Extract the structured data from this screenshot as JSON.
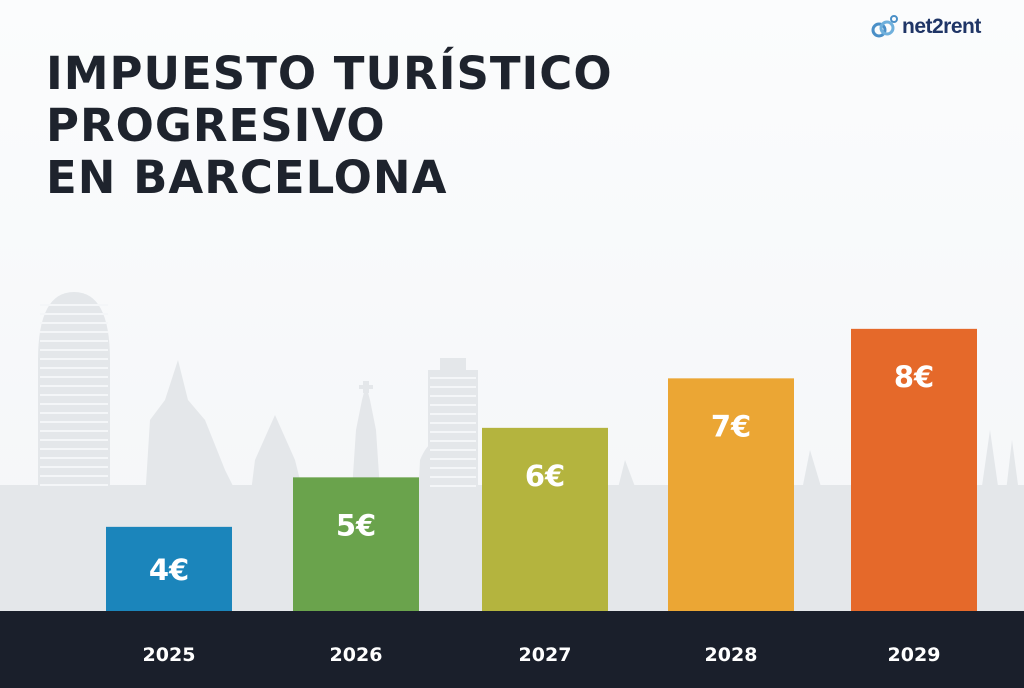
{
  "logo": {
    "text": "net2rent"
  },
  "chart_data": {
    "type": "bar",
    "title": [
      "IMPUESTO TURÍSTICO",
      "PROGRESIVO",
      "EN BARCELONA"
    ],
    "categories": [
      "2025",
      "2026",
      "2027",
      "2028",
      "2029"
    ],
    "values": [
      4,
      5,
      6,
      7,
      8
    ],
    "data_labels": [
      "4€",
      "5€",
      "6€",
      "7€",
      "8€"
    ],
    "colors": [
      "#1b85bb",
      "#6aa34c",
      "#b4b43e",
      "#eba634",
      "#e5692a"
    ],
    "xlabel": "",
    "ylabel": "",
    "unit": "€",
    "grid": false,
    "legend": "none"
  }
}
